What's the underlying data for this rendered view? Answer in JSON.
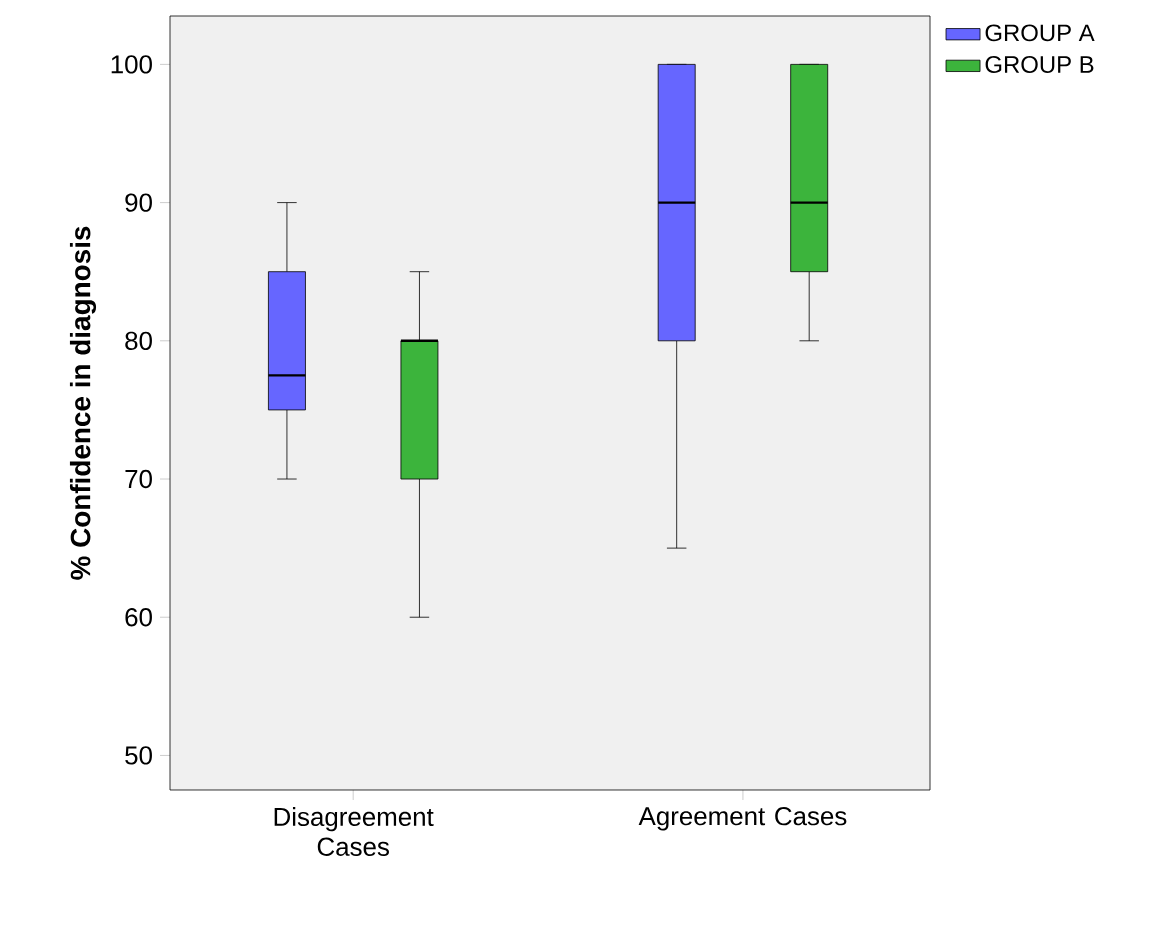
{
  "chart_data": {
    "type": "box",
    "ylabel": "% Confidence in diagnosis",
    "categories": [
      "Disagreement Cases",
      "Agreement Cases"
    ],
    "ylim": [
      47.5,
      103.5
    ],
    "yticks": [
      50,
      60,
      70,
      80,
      90,
      100
    ],
    "grid": false,
    "legend": "top right",
    "series": [
      {
        "name": "GROUP A",
        "color": "#6666ff",
        "boxes": [
          {
            "low": 70,
            "q1": 75,
            "median": 77.5,
            "q3": 85,
            "high": 90
          },
          {
            "low": 65,
            "q1": 80,
            "median": 90,
            "q3": 100,
            "high": 100
          }
        ]
      },
      {
        "name": "GROUP B",
        "color": "#3cb43c",
        "boxes": [
          {
            "low": 60,
            "q1": 70,
            "median": 80,
            "q3": 80,
            "high": 85
          },
          {
            "low": 80,
            "q1": 85,
            "median": 90,
            "q3": 100,
            "high": 100
          }
        ]
      }
    ]
  }
}
